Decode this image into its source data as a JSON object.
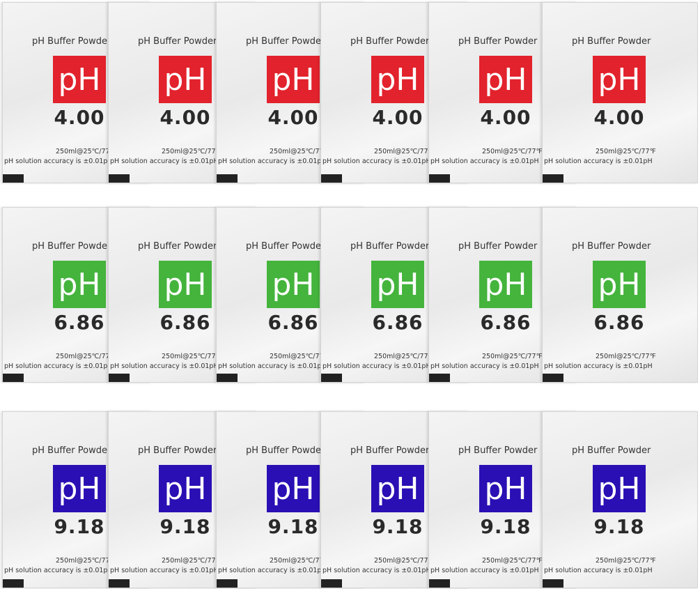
{
  "rows": [
    {
      "title": "pH Buffer Powder",
      "badge": "pH",
      "value": "4.00",
      "volume": "250ml@25℃/77℉",
      "accuracy": "pH solution accuracy is ±0.01pH"
    },
    {
      "title": "pH Buffer Powder",
      "badge": "pH",
      "value": "6.86",
      "volume": "250ml@25℃/77℉",
      "accuracy": "pH solution accuracy is ±0.01pH"
    },
    {
      "title": "pH Buffer Powder",
      "badge": "pH",
      "value": "9.18",
      "volume": "250ml@25℃/77℉",
      "accuracy": "pH solution accuracy is ±0.01pH"
    }
  ]
}
